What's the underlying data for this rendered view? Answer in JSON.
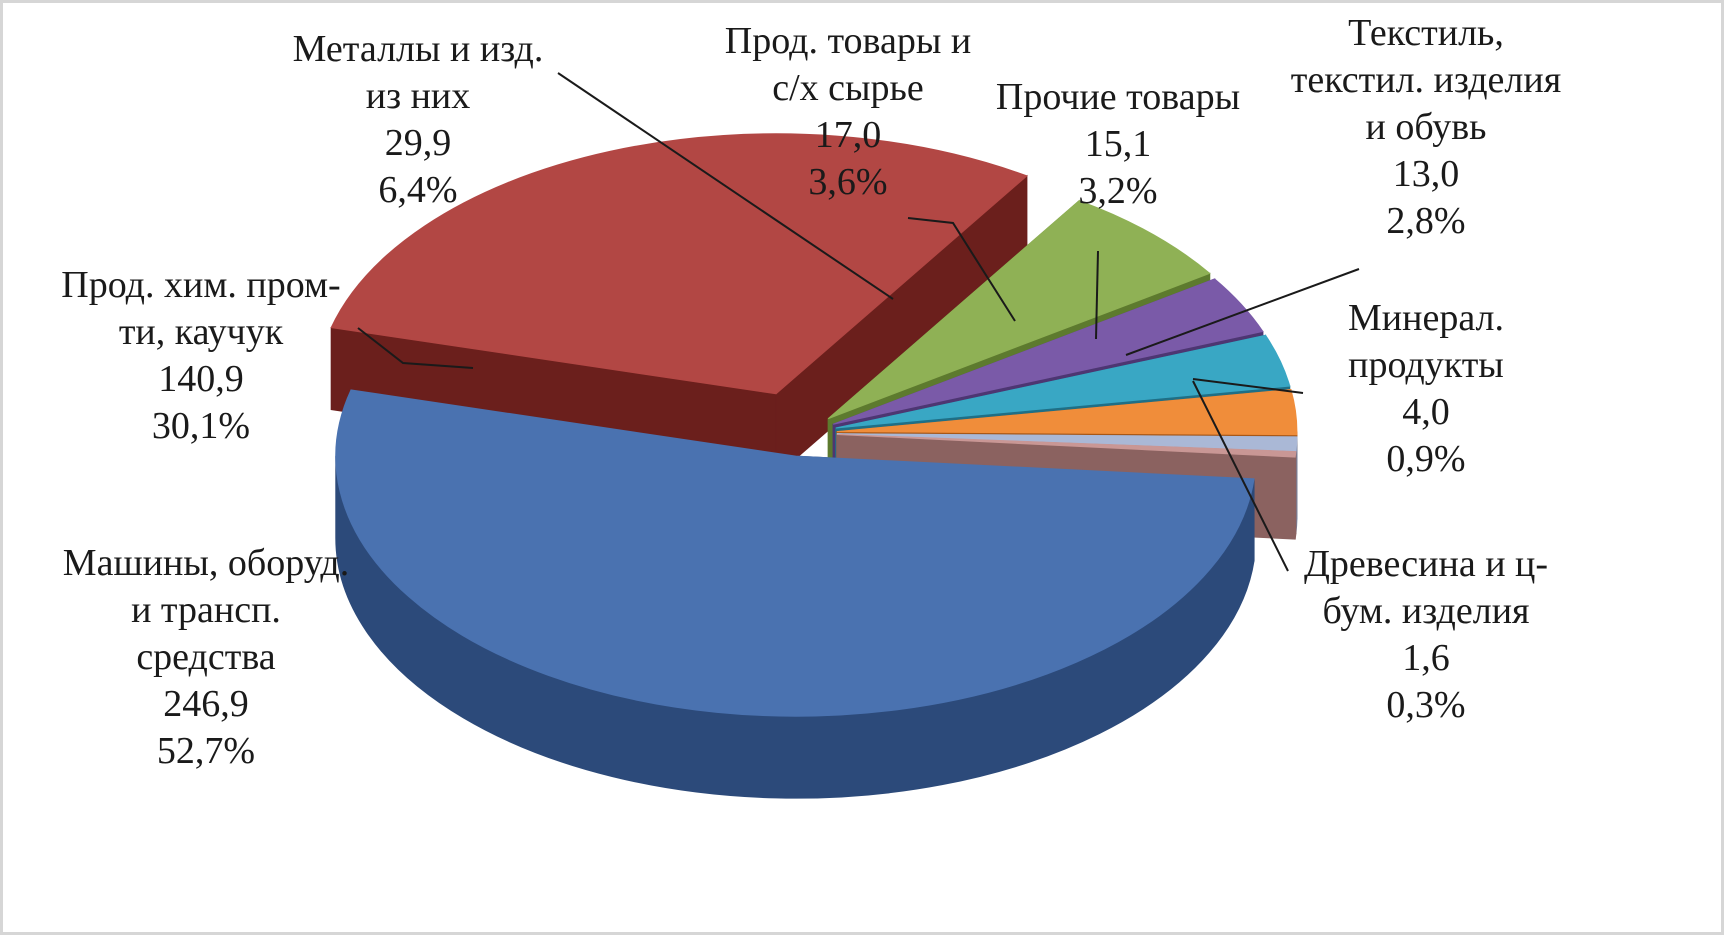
{
  "chart_data": {
    "type": "pie",
    "style": "3d-exploded",
    "title": "",
    "legend": "none",
    "slices": [
      {
        "key": "machines",
        "label": [
          "Машины, оборуд.",
          "и трансп.",
          "средства"
        ],
        "value": 246.9,
        "value_text": "246,9",
        "percent": 52.7,
        "percent_text": "52,7%",
        "color": "#4a72b0",
        "side_color": "#2c4a7a"
      },
      {
        "key": "chem",
        "label": [
          "Прод. хим. пром-",
          "ти, каучук"
        ],
        "value": 140.9,
        "value_text": "140,9",
        "percent": 30.1,
        "percent_text": "30,1%",
        "color": "#b24744",
        "side_color": "#6b1f1c"
      },
      {
        "key": "metals",
        "label": [
          "Металлы и изд.",
          "из них"
        ],
        "value": 29.9,
        "value_text": "29,9",
        "percent": 6.4,
        "percent_text": "6,4%",
        "color": "#8fb155",
        "side_color": "#5d7a2e"
      },
      {
        "key": "food",
        "label": [
          "Прод. товары и",
          "с/х сырье"
        ],
        "value": 17.0,
        "value_text": "17,0",
        "percent": 3.6,
        "percent_text": "3,6%",
        "color": "#7a5aa8",
        "side_color": "#4d3672"
      },
      {
        "key": "other",
        "label": [
          "Прочие товары"
        ],
        "value": 15.1,
        "value_text": "15,1",
        "percent": 3.2,
        "percent_text": "3,2%",
        "color": "#39a7c4",
        "side_color": "#1f6f86"
      },
      {
        "key": "textile",
        "label": [
          "Текстиль,",
          "текстил. изделия",
          "и обувь"
        ],
        "value": 13.0,
        "value_text": "13,0",
        "percent": 2.8,
        "percent_text": "2,8%",
        "color": "#f08d3a",
        "side_color": "#a85716"
      },
      {
        "key": "mineral",
        "label": [
          "Минерал.",
          "продукты"
        ],
        "value": 4.0,
        "value_text": "4,0",
        "percent": 0.9,
        "percent_text": "0,9%",
        "color": "#aab8d6",
        "side_color": "#7584a3"
      },
      {
        "key": "wood",
        "label": [
          "Древесина и ц-",
          "бум. изделия"
        ],
        "value": 1.6,
        "value_text": "1,6",
        "percent": 0.3,
        "percent_text": "0,3%",
        "color": "#c99795",
        "side_color": "#8b6260"
      }
    ]
  }
}
